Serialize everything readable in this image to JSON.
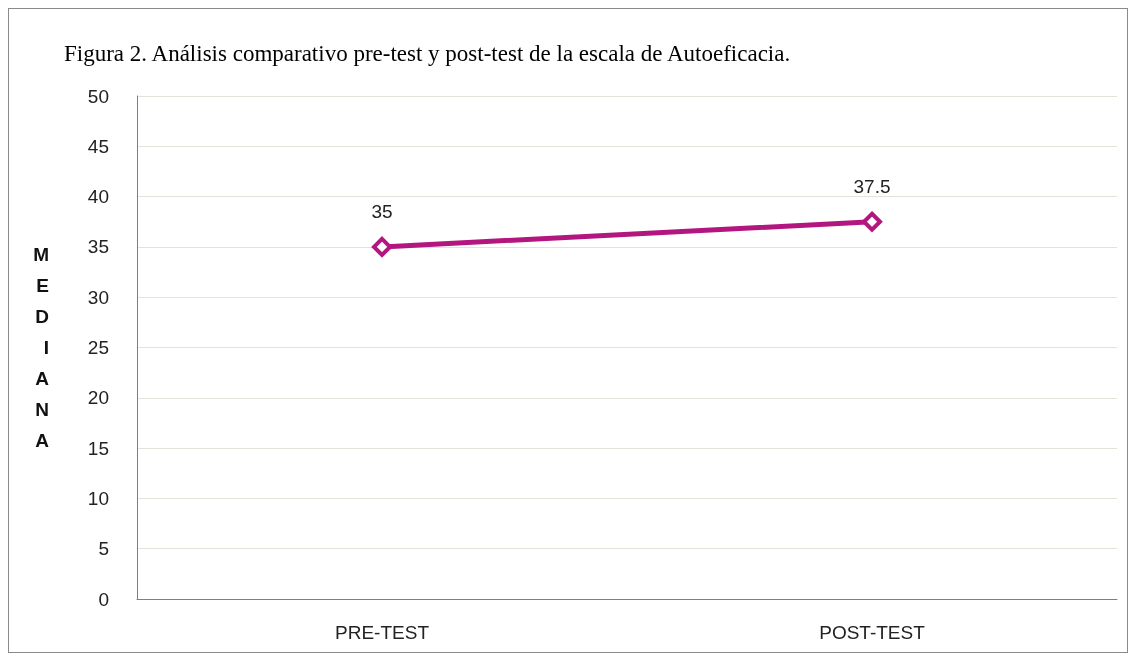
{
  "chart_data": {
    "type": "line",
    "title": "Figura 2. Análisis comparativo pre-test y post-test de la escala de Autoeficacia.",
    "ylabel": "MEDIANA",
    "categories": [
      "PRE-TEST",
      "POST-TEST"
    ],
    "series": [
      {
        "color": "#b3177f",
        "values": [
          35,
          37.5
        ]
      }
    ],
    "ylim": [
      0,
      50
    ],
    "yticks": [
      0,
      5,
      10,
      15,
      20,
      25,
      30,
      35,
      40,
      45,
      50
    ],
    "grid": "y",
    "marker": "diamond",
    "data_labels": true
  }
}
